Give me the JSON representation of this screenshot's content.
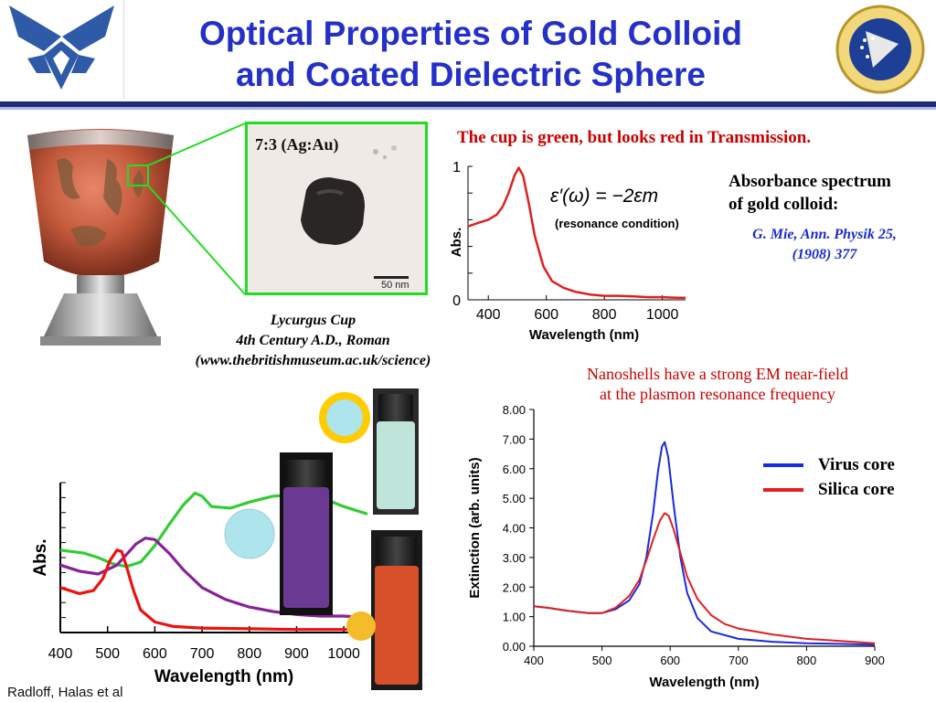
{
  "slide": {
    "title_line1": "Optical Properties of Gold Colloid",
    "title_line2": "and Coated Dielectric Sphere",
    "footer_credit": "Radloff, Halas et al",
    "colors": {
      "title_blue": "#2430c8",
      "rule_navy": "#1c2a7a",
      "accent_red": "#cc0000"
    }
  },
  "logos": {
    "left": "air-force-wings-logo",
    "right": "air-force-research-laboratory-seal"
  },
  "micrograph": {
    "label": "7:3 (Ag:Au)",
    "scale_bar": "50 nm",
    "frame_color": "#22dd22"
  },
  "cup_caption": {
    "line1": "Lycurgus Cup",
    "line2": "4th Century A.D., Roman",
    "line3": "(www.thebritishmuseum.ac.uk/science)"
  },
  "transmission_note": "The cup is green, but looks red in Transmission.",
  "absorbance_note": {
    "line1": "Absorbance spectrum",
    "line2": "of gold colloid:",
    "cite_line1": "G. Mie, Ann. Physik 25,",
    "cite_line2": "(1908) 377"
  },
  "nanoshell_note": {
    "line1": "Nanoshells have a strong EM near-field",
    "line2": "at the plasmon resonance frequency"
  },
  "chart_data": [
    {
      "type": "line",
      "name": "gold-colloid-absorbance",
      "xlabel": "Wavelength (nm)",
      "ylabel": "Abs.",
      "xlim": [
        330,
        1080
      ],
      "ylim": [
        0,
        1
      ],
      "x_ticks": [
        "400",
        "600",
        "800",
        "1000"
      ],
      "y_ticks": [
        "0",
        "1"
      ],
      "annotation": "(resonance condition)",
      "formula": "ε′(ω) = −2εm",
      "series": [
        {
          "color": "#e02020",
          "x": [
            330,
            370,
            400,
            430,
            450,
            470,
            490,
            505,
            520,
            540,
            560,
            590,
            620,
            660,
            700,
            750,
            800,
            850,
            900,
            950,
            1000,
            1050,
            1080
          ],
          "y": [
            0.55,
            0.58,
            0.6,
            0.64,
            0.7,
            0.8,
            0.93,
            0.99,
            0.93,
            0.72,
            0.48,
            0.25,
            0.14,
            0.09,
            0.06,
            0.04,
            0.03,
            0.03,
            0.025,
            0.02,
            0.02,
            0.015,
            0.015
          ]
        }
      ]
    },
    {
      "type": "line",
      "name": "nanoshell-absorbance",
      "xlabel": "Wavelength (nm)",
      "ylabel": "Abs.",
      "xlim": [
        400,
        1050
      ],
      "ylim": [
        0,
        1
      ],
      "x_ticks": [
        "400",
        "500",
        "600",
        "700",
        "800",
        "900",
        "1000"
      ],
      "series": [
        {
          "color": "#33cc33",
          "x": [
            400,
            450,
            480,
            510,
            540,
            570,
            600,
            630,
            660,
            685,
            700,
            720,
            760,
            800,
            850,
            900,
            960,
            1000,
            1050
          ],
          "y": [
            0.55,
            0.53,
            0.5,
            0.46,
            0.44,
            0.47,
            0.58,
            0.72,
            0.85,
            0.93,
            0.91,
            0.84,
            0.83,
            0.87,
            0.91,
            0.92,
            0.89,
            0.84,
            0.79
          ]
        },
        {
          "color": "#882299",
          "x": [
            400,
            440,
            480,
            520,
            560,
            580,
            600,
            630,
            660,
            700,
            750,
            800,
            850,
            900,
            950,
            1000,
            1050
          ],
          "y": [
            0.45,
            0.41,
            0.39,
            0.45,
            0.59,
            0.63,
            0.62,
            0.53,
            0.42,
            0.3,
            0.22,
            0.17,
            0.14,
            0.12,
            0.11,
            0.11,
            0.1
          ]
        },
        {
          "color": "#ee1111",
          "x": [
            400,
            440,
            470,
            490,
            505,
            520,
            530,
            540,
            555,
            570,
            600,
            640,
            700,
            800,
            900,
            1000,
            1050
          ],
          "y": [
            0.3,
            0.26,
            0.28,
            0.36,
            0.48,
            0.55,
            0.54,
            0.44,
            0.28,
            0.15,
            0.07,
            0.04,
            0.03,
            0.025,
            0.02,
            0.02,
            0.02
          ]
        }
      ]
    },
    {
      "type": "line",
      "name": "nanoshell-extinction",
      "xlabel": "Wavelength (nm)",
      "ylabel": "Extinction (arb. units)",
      "xlim": [
        400,
        900
      ],
      "ylim": [
        0,
        8
      ],
      "x_ticks": [
        "400",
        "500",
        "600",
        "700",
        "800",
        "900"
      ],
      "y_ticks": [
        "0.00",
        "1.00",
        "2.00",
        "3.00",
        "4.00",
        "5.00",
        "6.00",
        "7.00",
        "8.00"
      ],
      "series": [
        {
          "name": "Virus core",
          "color": "#1a2ae0",
          "x": [
            400,
            420,
            450,
            480,
            500,
            520,
            540,
            555,
            565,
            575,
            582,
            588,
            592,
            597,
            605,
            615,
            625,
            640,
            660,
            700,
            750,
            800,
            850,
            900
          ],
          "y": [
            1.35,
            1.3,
            1.2,
            1.12,
            1.12,
            1.25,
            1.55,
            2.1,
            3.0,
            4.5,
            5.9,
            6.75,
            6.9,
            6.4,
            4.8,
            3.0,
            1.8,
            0.95,
            0.5,
            0.25,
            0.15,
            0.1,
            0.08,
            0.05
          ]
        },
        {
          "name": "Silica core",
          "color": "#e02020",
          "x": [
            400,
            420,
            450,
            480,
            500,
            520,
            540,
            555,
            565,
            575,
            585,
            592,
            598,
            605,
            615,
            625,
            640,
            660,
            680,
            700,
            750,
            800,
            850,
            900
          ],
          "y": [
            1.35,
            1.3,
            1.2,
            1.12,
            1.12,
            1.3,
            1.7,
            2.25,
            2.9,
            3.6,
            4.25,
            4.5,
            4.4,
            3.95,
            3.15,
            2.35,
            1.6,
            1.05,
            0.75,
            0.6,
            0.4,
            0.25,
            0.18,
            0.1
          ]
        }
      ]
    }
  ]
}
